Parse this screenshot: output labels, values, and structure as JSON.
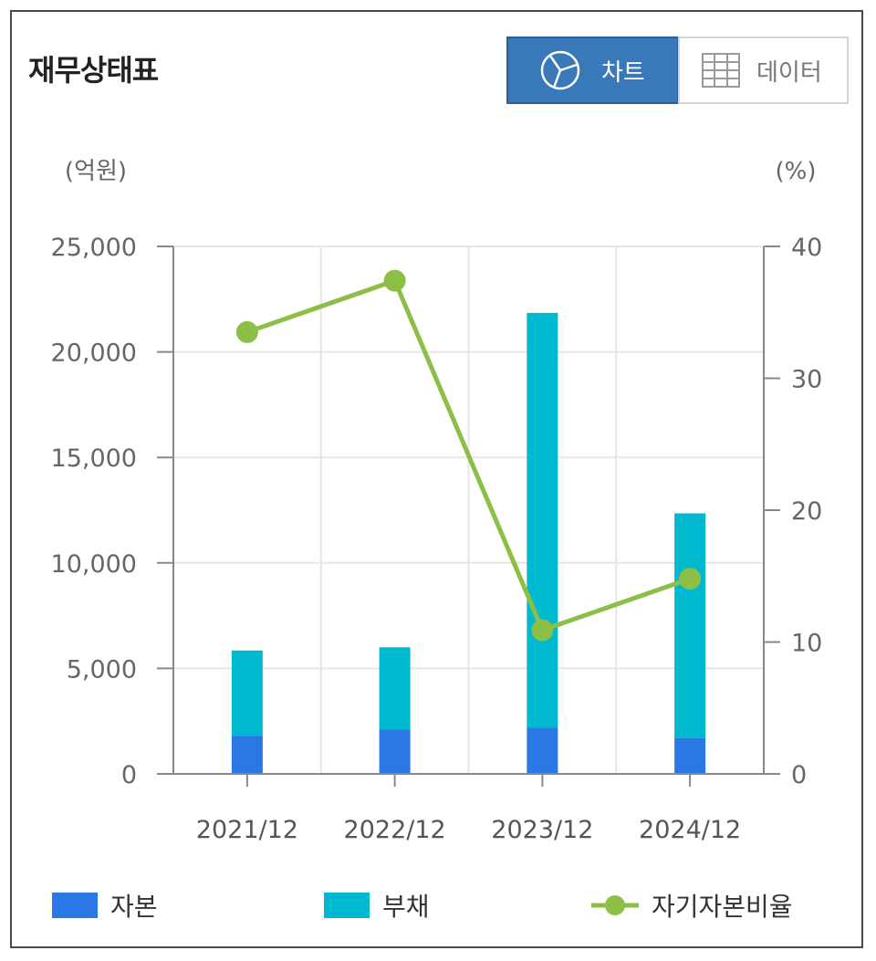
{
  "header": {
    "title": "재무상태표",
    "chart_button_label": "차트",
    "data_button_label": "데이터"
  },
  "icons": {
    "chart_button": "pie-chart-icon",
    "data_button": "table-grid-icon"
  },
  "colors": {
    "capital": "#2a78e4",
    "liability": "#00b9cf",
    "ratio_line": "#8cbf45",
    "active_button": "#3a79b9"
  },
  "chart_data": {
    "type": "bar",
    "stacked": true,
    "categories": [
      "2021/12",
      "2022/12",
      "2023/12",
      "2024/12"
    ],
    "left_axis_unit": "(억원)",
    "right_axis_unit": "(%)",
    "ylim": [
      0,
      25000
    ],
    "y2lim": [
      0,
      40
    ],
    "y_ticks": [
      "25,000",
      "20,000",
      "15,000",
      "10,000",
      "5,000",
      "0"
    ],
    "y2_ticks": [
      "40",
      "30",
      "20",
      "10",
      "0"
    ],
    "grid": true,
    "legend_position": "bottom",
    "series": [
      {
        "name": "자본",
        "type": "bar",
        "axis": "left",
        "values": [
          1800,
          2100,
          2200,
          1700
        ]
      },
      {
        "name": "부채",
        "type": "bar",
        "axis": "left",
        "values": [
          4050,
          3900,
          19650,
          10650
        ]
      },
      {
        "name": "자기자본비율",
        "type": "line",
        "axis": "right",
        "values": [
          33.5,
          37.4,
          10.9,
          14.8
        ]
      }
    ]
  },
  "legend": {
    "capital": "자본",
    "liability": "부채",
    "ratio": "자기자본비율"
  }
}
